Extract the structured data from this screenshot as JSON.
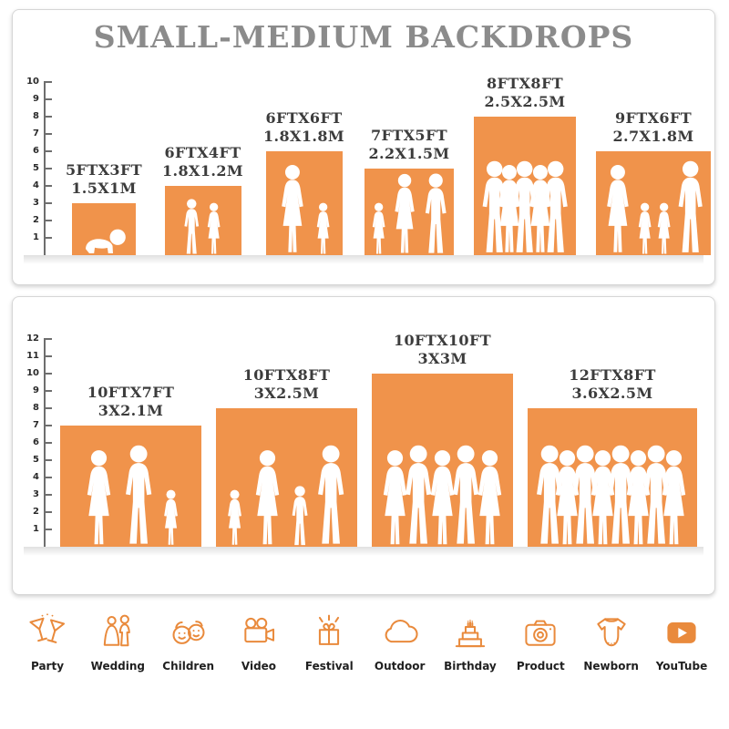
{
  "title": "SMALL-MEDIUM BACKDROPS",
  "colors": {
    "backdrop_orange": "#F0934B",
    "icon_orange": "#E98A3C",
    "title_gray": "#8B8B8B",
    "label_dark": "#3C3C3C"
  },
  "panels": [
    {
      "id": "small-medium",
      "ruler_max": 10,
      "ruler_unit": "FT",
      "backdrops": [
        {
          "ft": "5FTX3FT",
          "m": "1.5X1M",
          "w": 5,
          "h": 3,
          "figures": [
            "baby"
          ]
        },
        {
          "ft": "6FTX4FT",
          "m": "1.8X1.2M",
          "w": 6,
          "h": 4,
          "figures": [
            "boy",
            "girl"
          ]
        },
        {
          "ft": "6FTX6FT",
          "m": "1.8X1.8M",
          "w": 6,
          "h": 6,
          "figures": [
            "woman",
            "girl"
          ]
        },
        {
          "ft": "7FTX5FT",
          "m": "2.2X1.5M",
          "w": 7,
          "h": 5,
          "figures": [
            "girl",
            "woman",
            "man"
          ]
        },
        {
          "ft": "8FTX8FT",
          "m": "2.5X2.5M",
          "w": 8,
          "h": 8,
          "figures": [
            "man",
            "woman",
            "man",
            "woman",
            "man"
          ]
        },
        {
          "ft": "9FTX6FT",
          "m": "2.7X1.8M",
          "w": 9,
          "h": 6,
          "figures": [
            "woman",
            "girl",
            "girl",
            "man"
          ]
        }
      ]
    },
    {
      "id": "medium-large",
      "ruler_max": 12,
      "ruler_unit": "FT",
      "backdrops": [
        {
          "ft": "10FTX7FT",
          "m": "3X2.1M",
          "w": 10,
          "h": 7,
          "figures": [
            "woman",
            "man",
            "girl"
          ]
        },
        {
          "ft": "10FTX8FT",
          "m": "3X2.5M",
          "w": 10,
          "h": 8,
          "figures": [
            "girl",
            "woman",
            "boy",
            "man"
          ]
        },
        {
          "ft": "10FTX10FT",
          "m": "3X3M",
          "w": 10,
          "h": 10,
          "figures": [
            "woman",
            "man",
            "woman",
            "man",
            "woman"
          ]
        },
        {
          "ft": "12FTX8FT",
          "m": "3.6X2.5M",
          "w": 12,
          "h": 8,
          "figures": [
            "man",
            "woman",
            "man",
            "woman",
            "man",
            "woman",
            "man",
            "woman"
          ]
        }
      ]
    }
  ],
  "categories": [
    {
      "key": "party",
      "label": "Party"
    },
    {
      "key": "wedding",
      "label": "Wedding"
    },
    {
      "key": "children",
      "label": "Children"
    },
    {
      "key": "video",
      "label": "Video"
    },
    {
      "key": "festival",
      "label": "Festival"
    },
    {
      "key": "outdoor",
      "label": "Outdoor"
    },
    {
      "key": "birthday",
      "label": "Birthday"
    },
    {
      "key": "product",
      "label": "Product"
    },
    {
      "key": "newborn",
      "label": "Newborn"
    },
    {
      "key": "youtube",
      "label": "YouTube"
    }
  ]
}
